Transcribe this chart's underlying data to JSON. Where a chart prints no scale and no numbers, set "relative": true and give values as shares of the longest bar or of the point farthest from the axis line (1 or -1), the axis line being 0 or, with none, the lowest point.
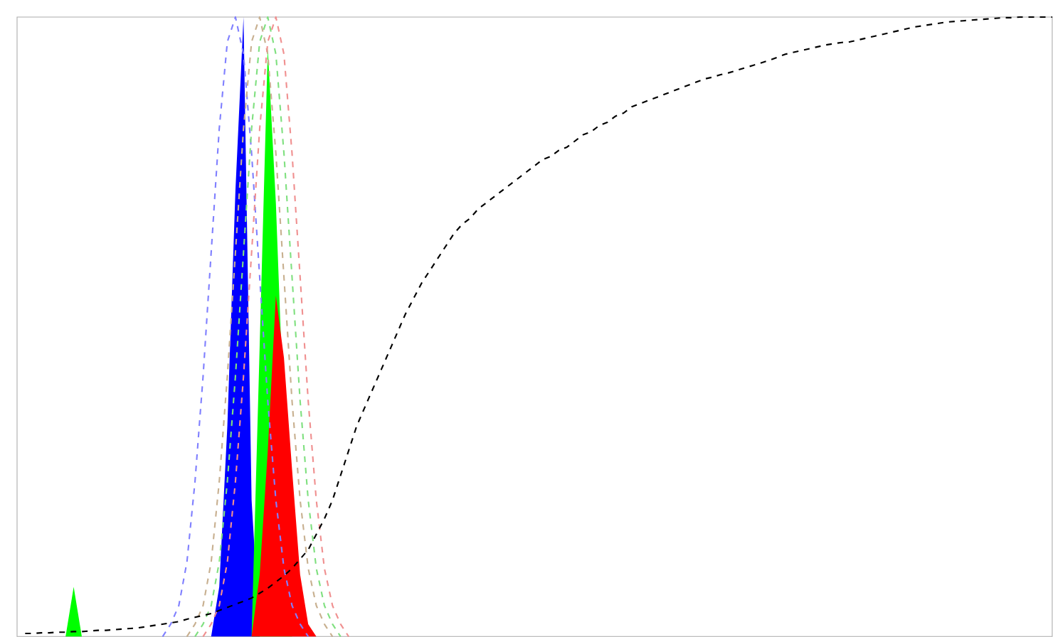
{
  "chart_data": {
    "type": "area",
    "relative": true,
    "categories": [
      null,
      null,
      null,
      null,
      null,
      null,
      null,
      null,
      null,
      null,
      null,
      null,
      null,
      null,
      null,
      null,
      null,
      null,
      null,
      null,
      null,
      null,
      null,
      null,
      null,
      null,
      null,
      null,
      null,
      null,
      null,
      null,
      null,
      null,
      null,
      null,
      null,
      null,
      null,
      null,
      null,
      null,
      null,
      null,
      null,
      null,
      null,
      null,
      null,
      null,
      null,
      null,
      null,
      null,
      null,
      null,
      null,
      null,
      null,
      null,
      null,
      null,
      null,
      null,
      null,
      null,
      null,
      null,
      null,
      null,
      null,
      null,
      null,
      null,
      null,
      null,
      null,
      null,
      null,
      null,
      null,
      null,
      null,
      null,
      null,
      null,
      null,
      null,
      null,
      null,
      null,
      null,
      null,
      null,
      null,
      null,
      null,
      null,
      null,
      null,
      null,
      null,
      null,
      null,
      null,
      null,
      null,
      null,
      null,
      null,
      null,
      null,
      null,
      null,
      null,
      null,
      null,
      null,
      null,
      null,
      null,
      null,
      null,
      null,
      null,
      null,
      null,
      null,
      null
    ],
    "series": [
      {
        "type": "line",
        "line_style": "dashed",
        "color": "#8080ff",
        "values": [
          null,
          null,
          null,
          null,
          null,
          null,
          null,
          null,
          null,
          null,
          null,
          null,
          null,
          null,
          null,
          null,
          null,
          null,
          0,
          0.02,
          0.05,
          0.12,
          0.25,
          0.42,
          0.62,
          0.82,
          0.96,
          1.0,
          0.94,
          0.78,
          0.58,
          0.38,
          0.22,
          0.11,
          0.05,
          0.02,
          0,
          null,
          null,
          null,
          null,
          null,
          null,
          null,
          null,
          null,
          null,
          null,
          null,
          null,
          null,
          null,
          null,
          null,
          null,
          null,
          null,
          null,
          null,
          null,
          null,
          null,
          null,
          null,
          null,
          null,
          null,
          null,
          null,
          null,
          null,
          null,
          null,
          null,
          null,
          null,
          null,
          null,
          null,
          null,
          null,
          null,
          null,
          null,
          null,
          null,
          null,
          null,
          null,
          null,
          null,
          null,
          null,
          null,
          null,
          null,
          null,
          null,
          null,
          null,
          null,
          null,
          null,
          null,
          null,
          null,
          null,
          null,
          null,
          null,
          null,
          null,
          null,
          null,
          null,
          null,
          null,
          null,
          null,
          null,
          null,
          null,
          null,
          null,
          null,
          null,
          null,
          null,
          null
        ]
      },
      {
        "type": "line",
        "line_style": "dashed",
        "color": "#c8b090",
        "values": [
          null,
          null,
          null,
          null,
          null,
          null,
          null,
          null,
          null,
          null,
          null,
          null,
          null,
          null,
          null,
          null,
          null,
          null,
          null,
          null,
          null,
          0,
          0.02,
          0.05,
          0.12,
          0.25,
          0.42,
          0.62,
          0.82,
          0.96,
          1.0,
          0.94,
          0.78,
          0.58,
          0.38,
          0.22,
          0.11,
          0.05,
          0.02,
          0,
          null,
          null,
          null,
          null,
          null,
          null,
          null,
          null,
          null,
          null,
          null,
          null,
          null,
          null,
          null,
          null,
          null,
          null,
          null,
          null,
          null,
          null,
          null,
          null,
          null,
          null,
          null,
          null,
          null,
          null,
          null,
          null,
          null,
          null,
          null,
          null,
          null,
          null,
          null,
          null,
          null,
          null,
          null,
          null,
          null,
          null,
          null,
          null,
          null,
          null,
          null,
          null,
          null,
          null,
          null,
          null,
          null,
          null,
          null,
          null,
          null,
          null,
          null,
          null,
          null,
          null,
          null,
          null,
          null,
          null,
          null,
          null,
          null,
          null,
          null,
          null,
          null,
          null,
          null,
          null,
          null,
          null,
          null,
          null,
          null,
          null,
          null,
          null,
          null
        ]
      },
      {
        "type": "line",
        "line_style": "dashed",
        "color": "#80e080",
        "values": [
          null,
          null,
          null,
          null,
          null,
          null,
          null,
          null,
          null,
          null,
          null,
          null,
          null,
          null,
          null,
          null,
          null,
          null,
          null,
          null,
          null,
          null,
          0,
          0.02,
          0.05,
          0.12,
          0.25,
          0.42,
          0.62,
          0.82,
          0.96,
          1.0,
          0.94,
          0.78,
          0.58,
          0.38,
          0.22,
          0.11,
          0.05,
          0.02,
          0,
          null,
          null,
          null,
          null,
          null,
          null,
          null,
          null,
          null,
          null,
          null,
          null,
          null,
          null,
          null,
          null,
          null,
          null,
          null,
          null,
          null,
          null,
          null,
          null,
          null,
          null,
          null,
          null,
          null,
          null,
          null,
          null,
          null,
          null,
          null,
          null,
          null,
          null,
          null,
          null,
          null,
          null,
          null,
          null,
          null,
          null,
          null,
          null,
          null,
          null,
          null,
          null,
          null,
          null,
          null,
          null,
          null,
          null,
          null,
          null,
          null,
          null,
          null,
          null,
          null,
          null,
          null,
          null,
          null,
          null,
          null,
          null,
          null,
          null,
          null,
          null,
          null,
          null,
          null,
          null,
          null,
          null,
          null,
          null,
          null,
          null,
          null,
          null
        ]
      },
      {
        "type": "line",
        "line_style": "dashed",
        "color": "#f09090",
        "values": [
          null,
          null,
          null,
          null,
          null,
          null,
          null,
          null,
          null,
          null,
          null,
          null,
          null,
          null,
          null,
          null,
          null,
          null,
          null,
          null,
          null,
          null,
          null,
          0,
          0.02,
          0.05,
          0.12,
          0.25,
          0.42,
          0.62,
          0.82,
          0.96,
          1.0,
          0.94,
          0.78,
          0.58,
          0.38,
          0.22,
          0.11,
          0.05,
          0.02,
          0,
          null,
          null,
          null,
          null,
          null,
          null,
          null,
          null,
          null,
          null,
          null,
          null,
          null,
          null,
          null,
          null,
          null,
          null,
          null,
          null,
          null,
          null,
          null,
          null,
          null,
          null,
          null,
          null,
          null,
          null,
          null,
          null,
          null,
          null,
          null,
          null,
          null,
          null,
          null,
          null,
          null,
          null,
          null,
          null,
          null,
          null,
          null,
          null,
          null,
          null,
          null,
          null,
          null,
          null,
          null,
          null,
          null,
          null,
          null,
          null,
          null,
          null,
          null,
          null,
          null,
          null,
          null,
          null,
          null,
          null,
          null,
          null,
          null,
          null,
          null,
          null,
          null,
          null,
          null,
          null,
          null,
          null,
          null,
          null,
          null,
          null,
          null
        ]
      },
      {
        "color": "#0000ff",
        "values": [
          0,
          0,
          0,
          0,
          0,
          0,
          0,
          0,
          0,
          0,
          0,
          0,
          0,
          0,
          0,
          0,
          0,
          0,
          0,
          0,
          0,
          0,
          0,
          0,
          0,
          0.08,
          0.34,
          0.72,
          1.0,
          0.22,
          0,
          0,
          0,
          0,
          0,
          0,
          0,
          0,
          0,
          0,
          0,
          0,
          0,
          0,
          0,
          0,
          0,
          0,
          0,
          0,
          0,
          0,
          0,
          0,
          0,
          0,
          0,
          0,
          0,
          0,
          0,
          0,
          0,
          0,
          0,
          0,
          0,
          0,
          0,
          0,
          0,
          0,
          0,
          0,
          0,
          0,
          0,
          0,
          0,
          0,
          0,
          0,
          0,
          0,
          0,
          0,
          0,
          0,
          0,
          0,
          0,
          0,
          0,
          0,
          0,
          0,
          0,
          0,
          0,
          0,
          0,
          0,
          0,
          0,
          0,
          0,
          0,
          0,
          0,
          0,
          0,
          0,
          0,
          0,
          0,
          0,
          0,
          0,
          0,
          0,
          0,
          0,
          0,
          0,
          0,
          0,
          0,
          0,
          0
        ]
      },
      {
        "color": "#00ff00",
        "values": [
          0,
          0,
          0,
          0,
          0,
          0,
          0,
          0.08,
          0,
          0,
          0,
          0,
          0,
          0,
          0,
          0,
          0,
          0,
          0,
          0,
          0,
          0,
          0,
          0,
          0,
          0,
          0,
          0,
          0,
          0,
          0.47,
          0.95,
          0.7,
          null,
          0,
          0,
          0,
          0,
          0,
          0,
          0,
          0,
          0,
          0,
          0,
          0,
          0,
          0,
          0,
          0,
          0,
          0,
          0,
          0,
          0,
          0,
          0,
          0,
          0,
          0,
          0,
          0,
          0,
          0,
          0,
          0,
          0,
          0,
          0,
          0,
          0,
          0,
          0,
          0,
          0,
          0,
          0,
          0,
          0,
          0,
          0,
          0,
          0,
          0,
          0,
          0,
          0,
          0,
          0,
          0,
          0,
          0,
          0,
          0,
          0,
          0,
          0,
          0,
          0,
          0,
          0,
          0,
          0,
          0,
          0,
          0,
          0,
          0,
          0,
          0,
          0,
          0,
          0,
          0,
          0,
          0,
          0,
          0,
          0,
          0,
          0,
          0,
          0,
          0,
          0,
          0,
          0,
          0,
          0
        ]
      },
      {
        "color": "#ff0000",
        "values": [
          0,
          0,
          0,
          0,
          0,
          0,
          0,
          0,
          0,
          0,
          0,
          0,
          0,
          0,
          0,
          0,
          0,
          0,
          0,
          0,
          0,
          0,
          0,
          0,
          0,
          0,
          0,
          0,
          0,
          0,
          0.1,
          0.3,
          0.55,
          0.45,
          0.27,
          0.1,
          0.02,
          0,
          0,
          0,
          0,
          0,
          0,
          0,
          0,
          0,
          0,
          0,
          0,
          0,
          0,
          0,
          0,
          0,
          0,
          0,
          0,
          0,
          0,
          0,
          0,
          0,
          0,
          0,
          0,
          0,
          0,
          0,
          0,
          0,
          0,
          0,
          0,
          0,
          0,
          0,
          0,
          0,
          0,
          0,
          0,
          0,
          0,
          0,
          0,
          0,
          0,
          0,
          0,
          0,
          0,
          0,
          0,
          0,
          0,
          0,
          0,
          0,
          0,
          0,
          0,
          0,
          0,
          0,
          0,
          0,
          0,
          0,
          0,
          0,
          0,
          0,
          0,
          0,
          0,
          0,
          0,
          0,
          0,
          0,
          0,
          0,
          0,
          0,
          0,
          0,
          0,
          0,
          0
        ]
      },
      {
        "type": "line",
        "line_style": "dashed",
        "color": "#000000",
        "values": [
          null,
          0.005,
          0.005,
          0.006,
          0.006,
          0.007,
          0.007,
          0.008,
          0.008,
          0.009,
          0.01,
          0.01,
          0.011,
          0.012,
          0.013,
          0.014,
          0.016,
          0.018,
          0.02,
          0.022,
          0.024,
          0.028,
          0.031,
          0.034,
          0.037,
          0.042,
          0.047,
          0.052,
          0.057,
          0.062,
          0.07,
          0.078,
          0.088,
          0.098,
          0.11,
          0.125,
          0.14,
          0.165,
          0.19,
          0.22,
          0.26,
          0.3,
          0.34,
          0.37,
          0.4,
          0.43,
          0.46,
          0.49,
          0.52,
          0.545,
          0.57,
          0.59,
          0.61,
          0.63,
          0.65,
          0.665,
          0.675,
          0.69,
          0.7,
          0.71,
          0.72,
          0.73,
          0.74,
          0.75,
          0.76,
          0.77,
          0.775,
          0.785,
          0.79,
          0.8,
          0.81,
          0.815,
          0.825,
          0.83,
          0.84,
          0.845,
          0.855,
          0.86,
          0.865,
          0.87,
          0.875,
          0.88,
          0.885,
          0.89,
          0.895,
          0.9,
          0.903,
          0.907,
          0.91,
          0.914,
          0.918,
          0.922,
          0.926,
          0.93,
          0.935,
          0.94,
          0.943,
          0.946,
          0.949,
          0.952,
          0.955,
          0.957,
          0.959,
          0.96,
          0.963,
          0.966,
          0.969,
          0.972,
          0.975,
          0.978,
          0.981,
          0.984,
          0.986,
          0.988,
          0.99,
          0.992,
          0.993,
          0.994,
          0.995,
          0.996,
          0.997,
          0.998,
          0.999,
          0.999,
          1,
          1,
          1,
          1,
          1
        ]
      }
    ]
  }
}
